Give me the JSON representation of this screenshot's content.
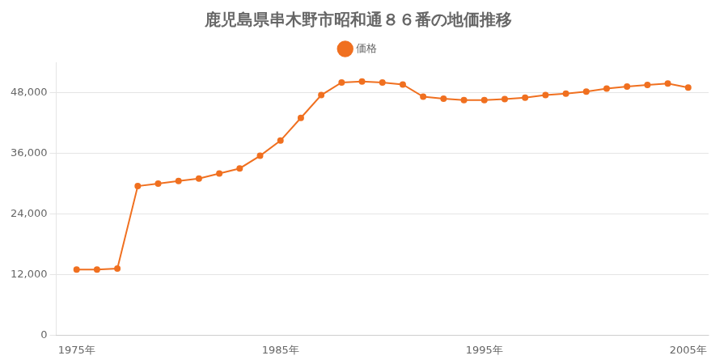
{
  "chart_data": {
    "type": "line",
    "title": "鹿児島県串木野市昭和通８６番の地価推移",
    "x": [
      1975,
      1976,
      1977,
      1978,
      1979,
      1980,
      1981,
      1982,
      1983,
      1984,
      1985,
      1986,
      1987,
      1988,
      1989,
      1990,
      1991,
      1992,
      1993,
      1994,
      1995,
      1996,
      1997,
      1998,
      1999,
      2000,
      2001,
      2002,
      2003,
      2004,
      2005
    ],
    "series": [
      {
        "name": "価格",
        "color": "#f07020",
        "marker": "circle",
        "values": [
          13000,
          13000,
          13200,
          29500,
          30000,
          30500,
          31000,
          32000,
          33000,
          35500,
          38500,
          43000,
          47500,
          50000,
          50200,
          50000,
          49600,
          47200,
          46800,
          46500,
          46500,
          46700,
          47000,
          47500,
          47800,
          48200,
          48800,
          49200,
          49500,
          49800,
          49000
        ]
      }
    ],
    "xlim": [
      1974,
      2006
    ],
    "xticks": [
      {
        "value": 1975,
        "label": "1975年"
      },
      {
        "value": 1985,
        "label": "1985年"
      },
      {
        "value": 1995,
        "label": "1995年"
      },
      {
        "value": 2005,
        "label": "2005年"
      }
    ],
    "ylim": [
      0,
      54000
    ],
    "yticks": [
      0,
      {
        "value": 12000,
        "label": "12,000"
      },
      {
        "value": 24000,
        "label": "24,000"
      },
      {
        "value": 36000,
        "label": "36,000"
      },
      {
        "value": 48000,
        "label": "48,000"
      }
    ],
    "grid": "y",
    "legend": "top"
  }
}
